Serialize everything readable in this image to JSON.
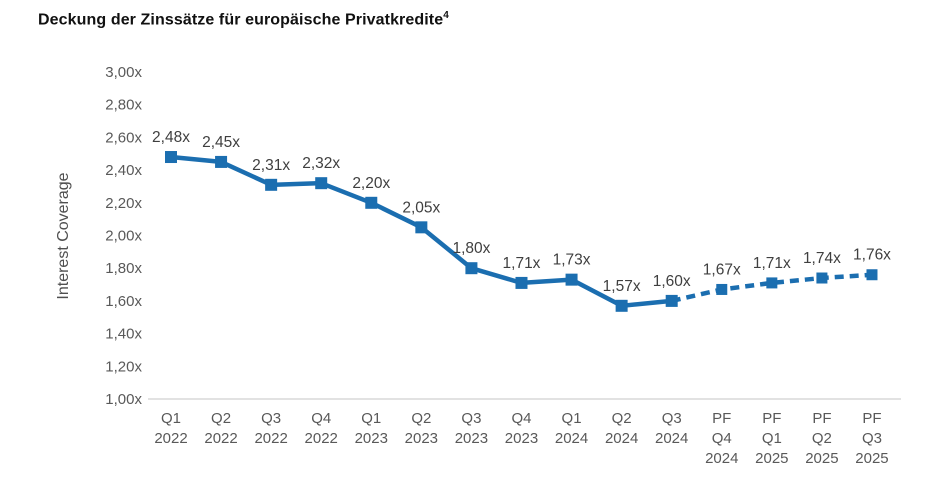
{
  "title": {
    "text": "Deckung der Zinssätze für europäische Privatkredite",
    "superscript": "4"
  },
  "chart_data": {
    "type": "line",
    "title": "Deckung der Zinssätze für europäische Privatkredite⁴",
    "xlabel": "",
    "ylabel": "Interest Coverage",
    "ylim": [
      1.0,
      3.0
    ],
    "ytick_interval": 0.2,
    "ytick_labels": [
      "1,00x",
      "1,20x",
      "1,40x",
      "1,60x",
      "1,80x",
      "2,00x",
      "2,20x",
      "2,40x",
      "2,60x",
      "2,80x",
      "3,00x"
    ],
    "grid": false,
    "legend_position": "none",
    "line_color": "#1b6eb0",
    "data_label_color": "#3f3f3f",
    "tick_label_color": "#595959",
    "axis_line_color": "#d9d9d9",
    "points": [
      {
        "category": "Q1 2022",
        "category_lines": [
          "Q1",
          "2022"
        ],
        "value": 2.48,
        "label": "2,48x",
        "segment": "actual"
      },
      {
        "category": "Q2 2022",
        "category_lines": [
          "Q2",
          "2022"
        ],
        "value": 2.45,
        "label": "2,45x",
        "segment": "actual"
      },
      {
        "category": "Q3 2022",
        "category_lines": [
          "Q3",
          "2022"
        ],
        "value": 2.31,
        "label": "2,31x",
        "segment": "actual"
      },
      {
        "category": "Q4 2022",
        "category_lines": [
          "Q4",
          "2022"
        ],
        "value": 2.32,
        "label": "2,32x",
        "segment": "actual"
      },
      {
        "category": "Q1 2023",
        "category_lines": [
          "Q1",
          "2023"
        ],
        "value": 2.2,
        "label": "2,20x",
        "segment": "actual"
      },
      {
        "category": "Q2 2023",
        "category_lines": [
          "Q2",
          "2023"
        ],
        "value": 2.05,
        "label": "2,05x",
        "segment": "actual"
      },
      {
        "category": "Q3 2023",
        "category_lines": [
          "Q3",
          "2023"
        ],
        "value": 1.8,
        "label": "1,80x",
        "segment": "actual"
      },
      {
        "category": "Q4 2023",
        "category_lines": [
          "Q4",
          "2023"
        ],
        "value": 1.71,
        "label": "1,71x",
        "segment": "actual"
      },
      {
        "category": "Q1 2024",
        "category_lines": [
          "Q1",
          "2024"
        ],
        "value": 1.73,
        "label": "1,73x",
        "segment": "actual"
      },
      {
        "category": "Q2 2024",
        "category_lines": [
          "Q2",
          "2024"
        ],
        "value": 1.57,
        "label": "1,57x",
        "segment": "actual"
      },
      {
        "category": "Q3 2024",
        "category_lines": [
          "Q3",
          "2024"
        ],
        "value": 1.6,
        "label": "1,60x",
        "segment": "actual"
      },
      {
        "category": "PF Q4 2024",
        "category_lines": [
          "PF",
          "Q4",
          "2024"
        ],
        "value": 1.67,
        "label": "1,67x",
        "segment": "forecast"
      },
      {
        "category": "PF Q1 2025",
        "category_lines": [
          "PF",
          "Q1",
          "2025"
        ],
        "value": 1.71,
        "label": "1,71x",
        "segment": "forecast"
      },
      {
        "category": "PF Q2 2025",
        "category_lines": [
          "PF",
          "Q2",
          "2025"
        ],
        "value": 1.74,
        "label": "1,74x",
        "segment": "forecast"
      },
      {
        "category": "PF Q3 2025",
        "category_lines": [
          "PF",
          "Q3",
          "2025"
        ],
        "value": 1.76,
        "label": "1,76x",
        "segment": "forecast"
      }
    ]
  }
}
